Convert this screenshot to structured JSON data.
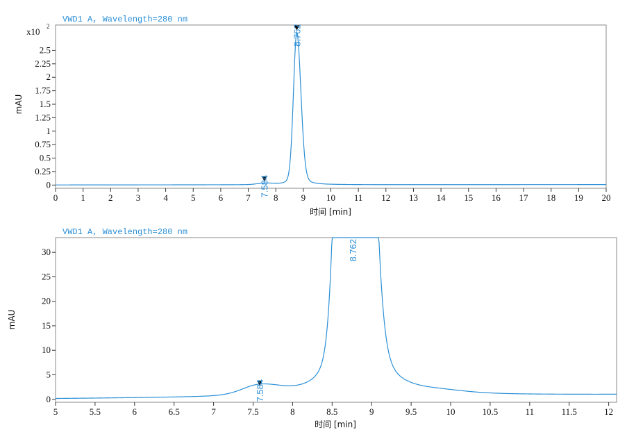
{
  "colors": {
    "trace": "#2b8fd6",
    "frame": "#8a8a8a",
    "text": "#111111"
  },
  "chart_data": [
    {
      "type": "line",
      "title": "VWD1 A, Wavelength=280 nm",
      "xlabel": "时间 [min]",
      "ylabel": "mAU",
      "y_multiplier_label": "x10",
      "y_multiplier_exp": "2",
      "xlim": [
        0,
        20
      ],
      "ylim": [
        -0.06,
        2.97
      ],
      "x_ticks": [
        0,
        1,
        2,
        3,
        4,
        5,
        6,
        7,
        8,
        9,
        10,
        11,
        12,
        13,
        14,
        15,
        16,
        17,
        18,
        19,
        20
      ],
      "x_tick_labels": [
        "0",
        "1",
        "2",
        "3",
        "4",
        "5",
        "6",
        "7",
        "8",
        "9",
        "10",
        "11",
        "12",
        "13",
        "14",
        "15",
        "16",
        "17",
        "18",
        "19",
        "20"
      ],
      "y_ticks": [
        0,
        0.25,
        0.5,
        0.75,
        1,
        1.25,
        1.5,
        1.75,
        2,
        2.25,
        2.5
      ],
      "y_tick_labels": [
        "0",
        "0.25",
        "0.5",
        "0.75",
        "1",
        "1.25",
        "1.5",
        "1.75",
        "2",
        "2.25",
        "2.5"
      ],
      "peaks": [
        {
          "rt": 7.584,
          "label": "7.584",
          "height": 0.027,
          "sigma": 0.25
        },
        {
          "rt": 8.762,
          "label": "8.762",
          "height": 2.83,
          "sigma": 0.12
        }
      ],
      "baseline": {
        "start": 0.002,
        "end": 0.009
      }
    },
    {
      "type": "line",
      "title": "VWD1 A, Wavelength=280 nm",
      "xlabel": "时间 [min]",
      "ylabel": "mAU",
      "xlim": [
        5,
        12.1
      ],
      "ylim": [
        -0.6,
        33
      ],
      "x_ticks": [
        5,
        5.5,
        6,
        6.5,
        7,
        7.5,
        8,
        8.5,
        9,
        9.5,
        10,
        10.5,
        11,
        11.5,
        12
      ],
      "x_tick_labels": [
        "5",
        "5.5",
        "6",
        "6.5",
        "7",
        "7.5",
        "8",
        "8.5",
        "9",
        "9.5",
        "10",
        "10.5",
        "11",
        "11.5",
        "12"
      ],
      "y_ticks": [
        0,
        5,
        10,
        15,
        20,
        25,
        30
      ],
      "y_tick_labels": [
        "0",
        "5",
        "10",
        "15",
        "20",
        "25",
        "30"
      ],
      "peaks": [
        {
          "rt": 7.584,
          "label": "7.584",
          "height": 2.0,
          "sigma": 0.22
        },
        {
          "rt": 8.762,
          "label": "8.762",
          "height": 283,
          "sigma": 0.12
        },
        {
          "rt": 9.9,
          "label": "",
          "height": 0.35,
          "sigma": 0.25
        }
      ],
      "baseline": {
        "start": 0.1,
        "end": 0.9
      }
    }
  ]
}
